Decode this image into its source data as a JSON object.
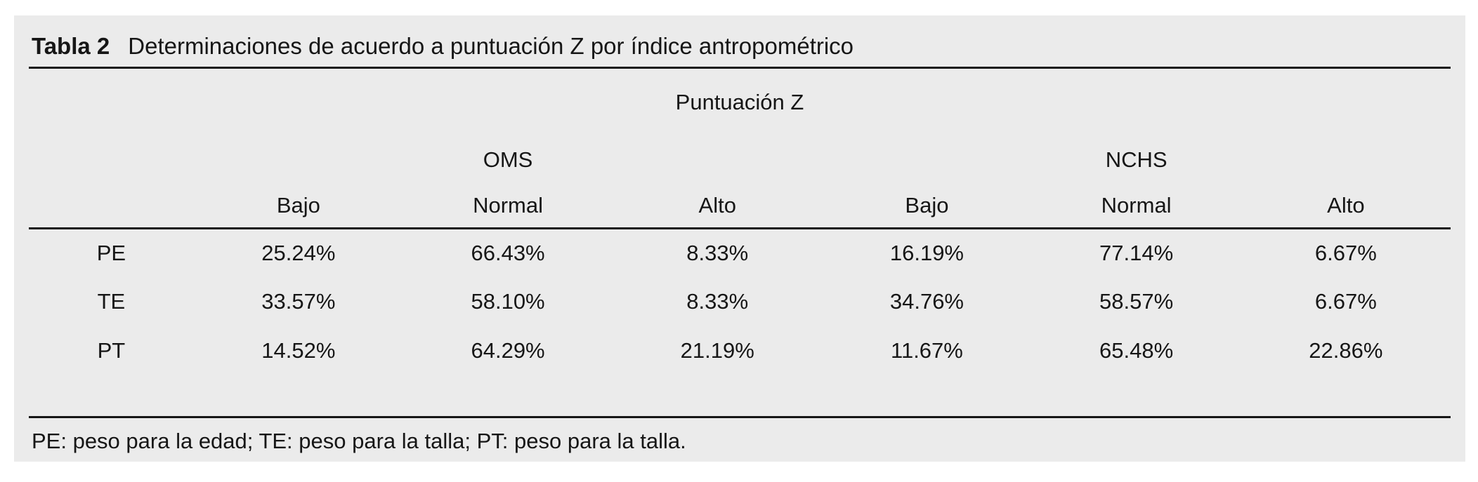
{
  "colors": {
    "panel_bg": "#ebebeb",
    "page_bg": "#ffffff",
    "text": "#161616",
    "rule": "#161616"
  },
  "table": {
    "label": "Tabla 2",
    "title": "Determinaciones de acuerdo a puntuación Z por índice antropométrico",
    "spanner": "Puntuación Z",
    "groups": [
      {
        "name": "OMS"
      },
      {
        "name": "NCHS"
      }
    ],
    "columns": [
      "Bajo",
      "Normal",
      "Alto",
      "Bajo",
      "Normal",
      "Alto"
    ],
    "rows": [
      {
        "label": "PE",
        "values": [
          "25.24%",
          "66.43%",
          "8.33%",
          "16.19%",
          "77.14%",
          "6.67%"
        ]
      },
      {
        "label": "TE",
        "values": [
          "33.57%",
          "58.10%",
          "8.33%",
          "34.76%",
          "58.57%",
          "6.67%"
        ]
      },
      {
        "label": "PT",
        "values": [
          "14.52%",
          "64.29%",
          "21.19%",
          "11.67%",
          "65.48%",
          "22.86%"
        ]
      }
    ],
    "footnote": "PE: peso para la edad; TE: peso para la talla; PT: peso para la talla."
  }
}
